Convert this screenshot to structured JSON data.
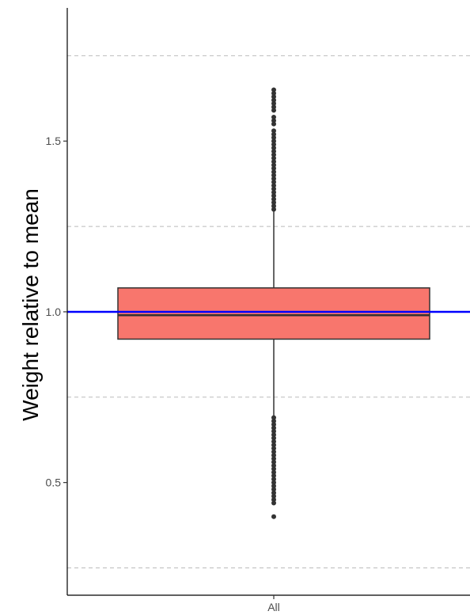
{
  "chart_data": {
    "type": "boxplot",
    "title": "",
    "xlabel": "",
    "ylabel": "Weight relative to mean",
    "categories": [
      "All"
    ],
    "ylim": [
      0.17,
      1.89
    ],
    "y_ticks": [
      0.5,
      1.0,
      1.5
    ],
    "y_tick_labels": [
      "0.5",
      "1.0",
      "1.5"
    ],
    "x_tick_labels": [
      "All"
    ],
    "box": {
      "category": "All",
      "q1": 0.92,
      "median": 0.99,
      "q3": 1.07,
      "whisker_low": 0.695,
      "whisker_high": 1.295
    },
    "outliers_high": [
      1.3,
      1.31,
      1.32,
      1.33,
      1.34,
      1.35,
      1.36,
      1.37,
      1.38,
      1.39,
      1.4,
      1.41,
      1.42,
      1.43,
      1.44,
      1.45,
      1.46,
      1.47,
      1.48,
      1.49,
      1.5,
      1.51,
      1.52,
      1.53,
      1.55,
      1.56,
      1.57,
      1.59,
      1.6,
      1.61,
      1.62,
      1.63,
      1.64,
      1.65
    ],
    "outliers_low": [
      0.69,
      0.68,
      0.67,
      0.66,
      0.65,
      0.64,
      0.63,
      0.62,
      0.61,
      0.6,
      0.59,
      0.58,
      0.57,
      0.56,
      0.55,
      0.54,
      0.53,
      0.52,
      0.51,
      0.5,
      0.49,
      0.48,
      0.47,
      0.46,
      0.45,
      0.44,
      0.4
    ],
    "reference_lines": [
      {
        "y": 1.0,
        "color": "#0000ff",
        "style": "solid"
      },
      {
        "y": 1.75,
        "color": "#bbbbbb",
        "style": "dashed"
      },
      {
        "y": 1.25,
        "color": "#bbbbbb",
        "style": "dashed"
      },
      {
        "y": 0.75,
        "color": "#bbbbbb",
        "style": "dashed"
      },
      {
        "y": 0.25,
        "color": "#bbbbbb",
        "style": "dashed"
      }
    ],
    "box_fill": "#f8766d",
    "box_stroke": "#333333",
    "grid": false
  }
}
